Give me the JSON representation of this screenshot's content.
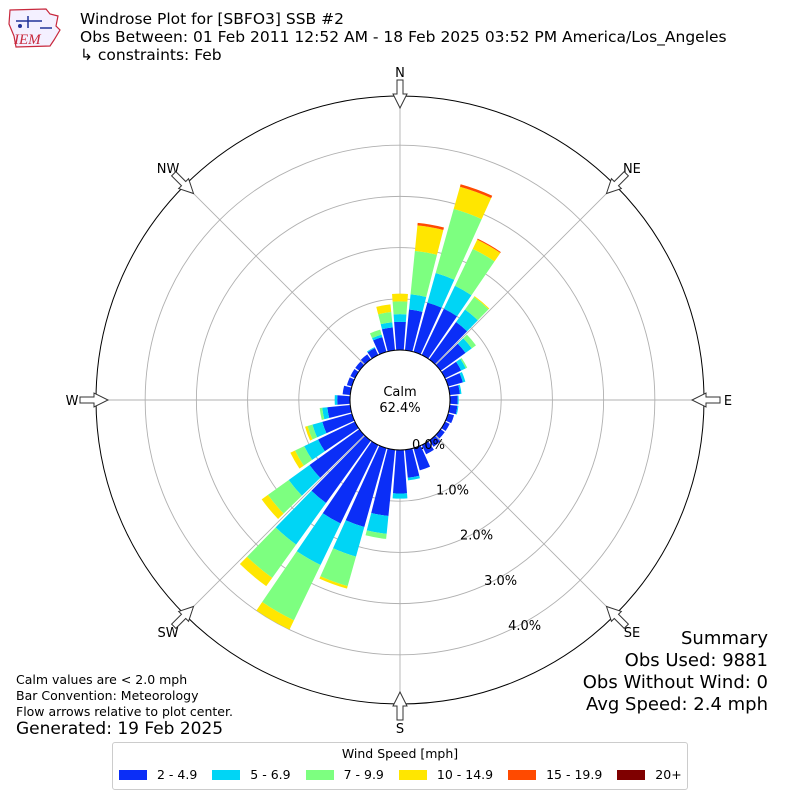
{
  "header": {
    "title": "Windrose Plot for [SBFO3] SSB #2",
    "subtitle": "Obs Between: 01 Feb 2011 12:52 AM - 18 Feb 2025 03:52 PM America/Los_Angeles",
    "constraints": "↳ constraints: Feb",
    "logo_text": "IEM"
  },
  "notes": {
    "calm_def": "Calm values are < 2.0 mph",
    "bar_convention": "Bar Convention: Meteorology",
    "flow_arrows": "Flow arrows relative to plot center.",
    "generated": "Generated: 19 Feb 2025"
  },
  "summary": {
    "heading": "Summary",
    "obs_used": "Obs Used: 9881",
    "obs_without_wind": "Obs Without Wind: 0",
    "avg_speed": "Avg Speed: 2.4 mph"
  },
  "chart_data": {
    "type": "windrose",
    "calm_label": "Calm",
    "calm_value": "62.4%",
    "directions_labels": [
      "N",
      "NE",
      "E",
      "SE",
      "S",
      "SW",
      "W",
      "NW"
    ],
    "radial_tick_labels": [
      "0.0%",
      "1.0%",
      "2.0%",
      "3.0%",
      "4.0%"
    ],
    "radial_ticks": [
      0,
      1,
      2,
      3,
      4
    ],
    "rmax": 4.96,
    "legend_title": "Wind Speed [mph]",
    "speed_bins": [
      {
        "label": "2 - 4.9",
        "color": "#0b2ef7"
      },
      {
        "label": "5 - 6.9",
        "color": "#00d5f5"
      },
      {
        "label": "7 - 9.9",
        "color": "#7dff80"
      },
      {
        "label": "10 - 14.9",
        "color": "#ffe600"
      },
      {
        "label": "15 - 19.9",
        "color": "#ff4a00"
      },
      {
        "label": "20+",
        "color": "#7f0000"
      }
    ],
    "sectors": [
      {
        "dir": 0,
        "v": [
          0.55,
          0.15,
          0.25,
          0.15,
          0,
          0
        ]
      },
      {
        "dir": 10,
        "v": [
          0.8,
          0.3,
          0.85,
          0.5,
          0.05,
          0
        ]
      },
      {
        "dir": 20,
        "v": [
          1.0,
          0.6,
          1.3,
          0.45,
          0.05,
          0
        ]
      },
      {
        "dir": 30,
        "v": [
          1.0,
          0.5,
          0.8,
          0.2,
          0.02,
          0
        ]
      },
      {
        "dir": 40,
        "v": [
          0.9,
          0.3,
          0.3,
          0.02,
          0,
          0
        ]
      },
      {
        "dir": 50,
        "v": [
          0.6,
          0.15,
          0.1,
          0,
          0,
          0
        ]
      },
      {
        "dir": 60,
        "v": [
          0.35,
          0.1,
          0.03,
          0,
          0,
          0
        ]
      },
      {
        "dir": 70,
        "v": [
          0.3,
          0.05,
          0,
          0,
          0,
          0
        ]
      },
      {
        "dir": 80,
        "v": [
          0.2,
          0.03,
          0,
          0,
          0,
          0
        ]
      },
      {
        "dir": 90,
        "v": [
          0.15,
          0.02,
          0,
          0,
          0,
          0
        ]
      },
      {
        "dir": 100,
        "v": [
          0.15,
          0.02,
          0,
          0,
          0,
          0
        ]
      },
      {
        "dir": 110,
        "v": [
          0.12,
          0,
          0,
          0,
          0,
          0
        ]
      },
      {
        "dir": 120,
        "v": [
          0.1,
          0,
          0,
          0,
          0,
          0
        ]
      },
      {
        "dir": 130,
        "v": [
          0.1,
          0,
          0,
          0,
          0,
          0
        ]
      },
      {
        "dir": 140,
        "v": [
          0.15,
          0,
          0,
          0,
          0,
          0
        ]
      },
      {
        "dir": 150,
        "v": [
          0.2,
          0,
          0,
          0,
          0,
          0
        ]
      },
      {
        "dir": 160,
        "v": [
          0.45,
          0,
          0,
          0,
          0,
          0
        ]
      },
      {
        "dir": 170,
        "v": [
          0.55,
          0.05,
          0,
          0,
          0,
          0
        ]
      },
      {
        "dir": 180,
        "v": [
          0.85,
          0.1,
          0,
          0,
          0,
          0
        ]
      },
      {
        "dir": 190,
        "v": [
          1.3,
          0.35,
          0.1,
          0,
          0,
          0
        ]
      },
      {
        "dir": 200,
        "v": [
          1.6,
          0.6,
          0.6,
          0.05,
          0,
          0
        ]
      },
      {
        "dir": 210,
        "v": [
          1.7,
          0.9,
          1.2,
          0.2,
          0,
          0
        ]
      },
      {
        "dir": 220,
        "v": [
          1.5,
          1.0,
          0.8,
          0.2,
          0,
          0
        ]
      },
      {
        "dir": 230,
        "v": [
          1.2,
          0.5,
          0.5,
          0.15,
          0,
          0
        ]
      },
      {
        "dir": 240,
        "v": [
          0.8,
          0.3,
          0.2,
          0.1,
          0,
          0
        ]
      },
      {
        "dir": 250,
        "v": [
          0.6,
          0.2,
          0.1,
          0.05,
          0,
          0
        ]
      },
      {
        "dir": 260,
        "v": [
          0.45,
          0.1,
          0.05,
          0,
          0,
          0
        ]
      },
      {
        "dir": 270,
        "v": [
          0.25,
          0.05,
          0,
          0,
          0,
          0
        ]
      },
      {
        "dir": 280,
        "v": [
          0.15,
          0,
          0,
          0,
          0,
          0
        ]
      },
      {
        "dir": 290,
        "v": [
          0.1,
          0,
          0,
          0,
          0,
          0
        ]
      },
      {
        "dir": 300,
        "v": [
          0.1,
          0,
          0,
          0,
          0,
          0
        ]
      },
      {
        "dir": 310,
        "v": [
          0.1,
          0,
          0,
          0,
          0,
          0
        ]
      },
      {
        "dir": 320,
        "v": [
          0.12,
          0,
          0,
          0,
          0,
          0
        ]
      },
      {
        "dir": 330,
        "v": [
          0.15,
          0.02,
          0,
          0,
          0,
          0
        ]
      },
      {
        "dir": 340,
        "v": [
          0.3,
          0.05,
          0.1,
          0,
          0,
          0
        ]
      },
      {
        "dir": 350,
        "v": [
          0.45,
          0.1,
          0.2,
          0.15,
          0,
          0
        ]
      }
    ]
  }
}
